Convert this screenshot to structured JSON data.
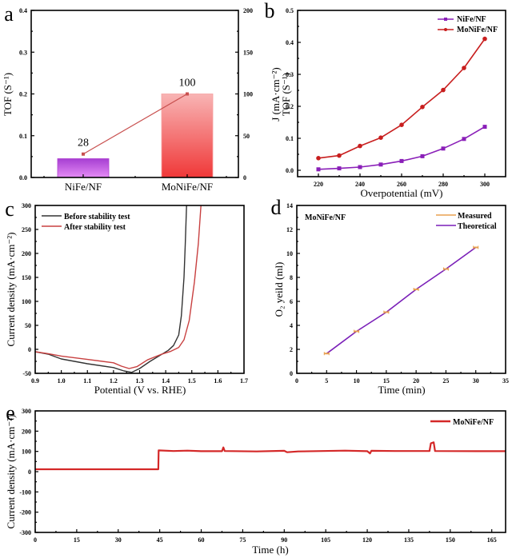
{
  "chart_data": [
    {
      "panel": "a",
      "type": "bar",
      "categories": [
        "NiFe/NF",
        "MoNiFe/NF"
      ],
      "ylabel": "TOF (S⁻¹)",
      "ylim": [
        0,
        0.4
      ],
      "yticks": [
        "0.0",
        "0.1",
        "0.2",
        "0.3",
        "0.4"
      ],
      "y2lim": [
        0,
        200
      ],
      "y2ticks": [
        "0",
        "50",
        "100",
        "150",
        "200"
      ],
      "series": [
        {
          "name": "TOF bars",
          "values": [
            0.045,
            0.2
          ],
          "colors": [
            "#b14bd8",
            "#f24a4a"
          ]
        },
        {
          "name": "Ratio line (right axis)",
          "values": [
            28,
            100
          ],
          "labels": [
            "28",
            "100"
          ],
          "color": "#c8504f"
        }
      ]
    },
    {
      "panel": "b",
      "type": "line",
      "xlabel": "Overpotential (mV)",
      "ylabel_line1": "J (mA·cm⁻²)",
      "ylabel_line2": "TOF (S⁻¹)",
      "xlim": [
        210,
        310
      ],
      "ylim": [
        -0.02,
        0.5
      ],
      "xticks": [
        "220",
        "240",
        "260",
        "280",
        "300"
      ],
      "yticks": [
        "0.0",
        "0.1",
        "0.2",
        "0.3",
        "0.4",
        "0.5"
      ],
      "x": [
        220,
        230,
        240,
        250,
        260,
        270,
        280,
        290,
        300
      ],
      "legend": "top-right",
      "series": [
        {
          "name": "NiFe/NF",
          "color": "#8a1fb8",
          "marker": "square",
          "values": [
            0.003,
            0.006,
            0.01,
            0.018,
            0.029,
            0.044,
            0.068,
            0.098,
            0.136
          ]
        },
        {
          "name": "MoNiFe/NF",
          "color": "#c81e1e",
          "marker": "circle",
          "values": [
            0.038,
            0.046,
            0.076,
            0.102,
            0.142,
            0.198,
            0.251,
            0.32,
            0.411
          ]
        }
      ]
    },
    {
      "panel": "c",
      "type": "line",
      "xlabel": "Potential (V vs. RHE)",
      "ylabel": "Current density (mA·cm⁻²)",
      "xlim": [
        0.9,
        1.7
      ],
      "ylim": [
        -50,
        300
      ],
      "xticks": [
        "0.9",
        "1.0",
        "1.1",
        "1.2",
        "1.3",
        "1.4",
        "1.5",
        "1.6",
        "1.7"
      ],
      "yticks": [
        "-50",
        "0",
        "50",
        "100",
        "150",
        "200",
        "250",
        "300"
      ],
      "legend": "top-left",
      "series": [
        {
          "name": "Before stability test",
          "color": "#333333",
          "points": [
            [
              0.9,
              -5
            ],
            [
              0.95,
              -10
            ],
            [
              1.0,
              -20
            ],
            [
              1.1,
              -30
            ],
            [
              1.2,
              -38
            ],
            [
              1.24,
              -45
            ],
            [
              1.27,
              -48
            ],
            [
              1.3,
              -40
            ],
            [
              1.34,
              -25
            ],
            [
              1.38,
              -12
            ],
            [
              1.41,
              -2
            ],
            [
              1.43,
              8
            ],
            [
              1.45,
              30
            ],
            [
              1.46,
              70
            ],
            [
              1.47,
              150
            ],
            [
              1.475,
              220
            ],
            [
              1.48,
              300
            ]
          ]
        },
        {
          "name": "After stability test",
          "color": "#c84040",
          "points": [
            [
              0.9,
              -5
            ],
            [
              0.95,
              -9
            ],
            [
              1.0,
              -14
            ],
            [
              1.1,
              -21
            ],
            [
              1.2,
              -28
            ],
            [
              1.23,
              -35
            ],
            [
              1.26,
              -40
            ],
            [
              1.29,
              -36
            ],
            [
              1.33,
              -22
            ],
            [
              1.38,
              -11
            ],
            [
              1.42,
              -4
            ],
            [
              1.45,
              4
            ],
            [
              1.47,
              20
            ],
            [
              1.49,
              60
            ],
            [
              1.51,
              140
            ],
            [
              1.525,
              220
            ],
            [
              1.535,
              300
            ]
          ]
        }
      ]
    },
    {
      "panel": "d",
      "type": "line",
      "annotation": "MoNiFe/NF",
      "xlabel": "Time (min)",
      "ylabel": "O₂ yeild (ml)",
      "xlim": [
        0,
        35
      ],
      "ylim": [
        0,
        14
      ],
      "xticks": [
        "0",
        "5",
        "10",
        "15",
        "20",
        "25",
        "30",
        "35"
      ],
      "yticks": [
        "0",
        "2",
        "4",
        "6",
        "8",
        "10",
        "12",
        "14"
      ],
      "x": [
        5,
        10,
        15,
        20,
        25,
        30
      ],
      "legend": "top-right",
      "series": [
        {
          "name": "Measured",
          "color": "#e8a050",
          "values": [
            1.65,
            3.5,
            5.1,
            7.0,
            8.7,
            10.5
          ]
        },
        {
          "name": "Theoretical",
          "color": "#7a1fb8",
          "values": [
            1.65,
            3.5,
            5.1,
            7.0,
            8.7,
            10.5
          ]
        }
      ]
    },
    {
      "panel": "e",
      "type": "line",
      "xlabel": "Time (h)",
      "ylabel": "Current density (mA·cm⁻²)",
      "xlim": [
        0,
        170
      ],
      "ylim": [
        -300,
        300
      ],
      "xticks": [
        "0",
        "15",
        "30",
        "45",
        "60",
        "75",
        "90",
        "105",
        "120",
        "135",
        "150",
        "165"
      ],
      "yticks": [
        "-300",
        "-200",
        "-100",
        "0",
        "100",
        "200",
        "300"
      ],
      "legend": "top-right",
      "series": [
        {
          "name": "MoNiFe/NF",
          "color": "#d42828",
          "points": [
            [
              0,
              12
            ],
            [
              44.5,
              12
            ],
            [
              44.6,
              105
            ],
            [
              50,
              102
            ],
            [
              55,
              104
            ],
            [
              60,
              101
            ],
            [
              67.5,
              101
            ],
            [
              68,
              120
            ],
            [
              68.5,
              102
            ],
            [
              80,
              100
            ],
            [
              90,
              103
            ],
            [
              91,
              96
            ],
            [
              95,
              100
            ],
            [
              112,
              104
            ],
            [
              120,
              101
            ],
            [
              121,
              90
            ],
            [
              121.5,
              103
            ],
            [
              130,
              102
            ],
            [
              142.5,
              102
            ],
            [
              143,
              140
            ],
            [
              144,
              145
            ],
            [
              144.5,
              102
            ],
            [
              160,
              101
            ],
            [
              170,
              101
            ]
          ]
        }
      ]
    }
  ],
  "panel_labels": [
    "a",
    "b",
    "c",
    "d",
    "e"
  ]
}
